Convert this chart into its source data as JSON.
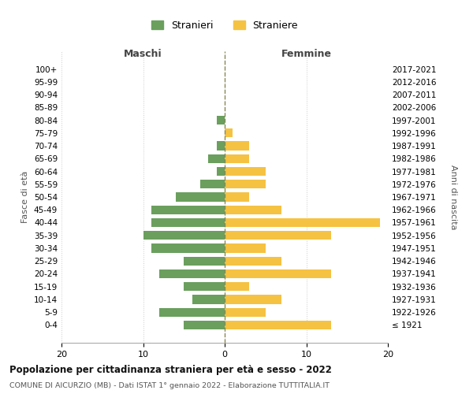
{
  "age_groups": [
    "100+",
    "95-99",
    "90-94",
    "85-89",
    "80-84",
    "75-79",
    "70-74",
    "65-69",
    "60-64",
    "55-59",
    "50-54",
    "45-49",
    "40-44",
    "35-39",
    "30-34",
    "25-29",
    "20-24",
    "15-19",
    "10-14",
    "5-9",
    "0-4"
  ],
  "birth_years": [
    "≤ 1921",
    "1922-1926",
    "1927-1931",
    "1932-1936",
    "1937-1941",
    "1942-1946",
    "1947-1951",
    "1952-1956",
    "1957-1961",
    "1962-1966",
    "1967-1971",
    "1972-1976",
    "1977-1981",
    "1982-1986",
    "1987-1991",
    "1992-1996",
    "1997-2001",
    "2002-2006",
    "2007-2011",
    "2012-2016",
    "2017-2021"
  ],
  "maschi": [
    0,
    0,
    0,
    0,
    1,
    0,
    1,
    2,
    1,
    3,
    6,
    9,
    9,
    10,
    9,
    5,
    8,
    5,
    4,
    8,
    5
  ],
  "femmine": [
    0,
    0,
    0,
    0,
    0,
    1,
    3,
    3,
    5,
    5,
    3,
    7,
    19,
    13,
    5,
    7,
    13,
    3,
    7,
    5,
    13
  ],
  "color_maschi": "#6a9f5e",
  "color_femmine": "#f5c242",
  "title": "Popolazione per cittadinanza straniera per età e sesso - 2022",
  "subtitle": "COMUNE DI AICURZIO (MB) - Dati ISTAT 1° gennaio 2022 - Elaborazione TUTTITALIA.IT",
  "legend_maschi": "Stranieri",
  "legend_femmine": "Straniere",
  "xlabel_maschi": "Maschi",
  "xlabel_femmine": "Femmine",
  "ylabel_left": "Fasce di età",
  "ylabel_right": "Anni di nascita",
  "xlim": 20,
  "background_color": "#ffffff",
  "grid_color": "#cccccc",
  "dashed_line_color": "#888855"
}
